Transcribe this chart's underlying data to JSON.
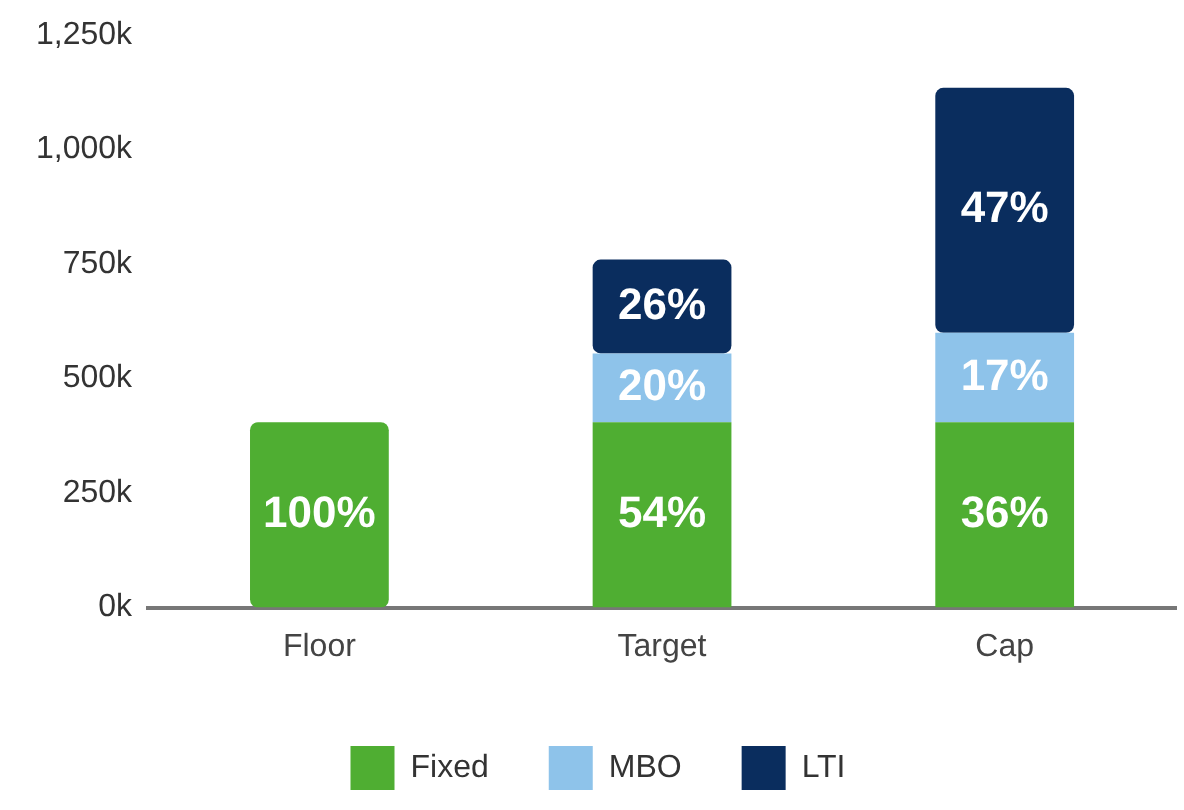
{
  "chart_data": {
    "type": "bar",
    "stacked": true,
    "categories": [
      "Floor",
      "Target",
      "Cap"
    ],
    "series": [
      {
        "name": "Fixed",
        "color": "#4fae32",
        "values": [
          405,
          405,
          405
        ]
      },
      {
        "name": "MBO",
        "color": "#8ec3ea",
        "values": [
          null,
          150,
          195
        ]
      },
      {
        "name": "LTI",
        "color": "#0a2d5e",
        "values": [
          null,
          205,
          535
        ]
      }
    ],
    "annotations": [
      "100%",
      "54%",
      "36%",
      "20%",
      "17%",
      "26%",
      "47%"
    ],
    "ylim": [
      0,
      1250
    ],
    "yticks": [
      {
        "value": 0,
        "label": "0k"
      },
      {
        "value": 250,
        "label": "250k"
      },
      {
        "value": 500,
        "label": "500k"
      },
      {
        "value": 750,
        "label": "750k"
      },
      {
        "value": 1000,
        "label": "1,000k"
      },
      {
        "value": 1250,
        "label": "1,250k"
      }
    ],
    "grid": false,
    "legend": "bottom"
  }
}
